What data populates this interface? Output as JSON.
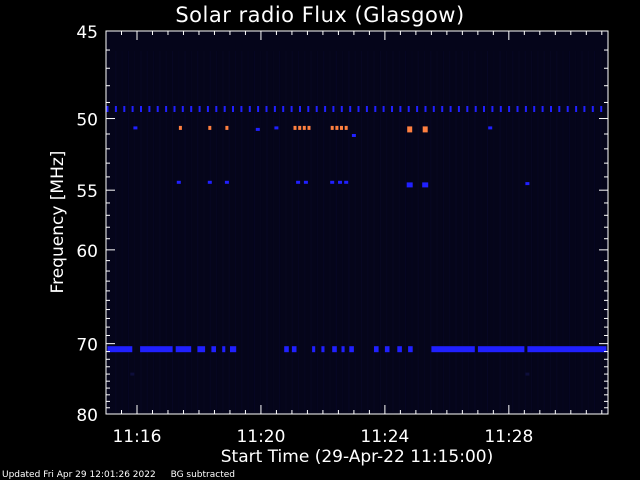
{
  "chart_data": {
    "type": "heatmap",
    "title": "Solar radio Flux (Glasgow)",
    "xlabel": "Start Time (29-Apr-22 11:15:00)",
    "ylabel": "Frequency [MHz]",
    "x_unit": "minutes after 11:15:00",
    "xlim": [
      0,
      16.2
    ],
    "ylim": [
      45,
      80
    ],
    "y_scale": "reciprocal",
    "x_ticks": [
      {
        "value": 1,
        "label": "11:16"
      },
      {
        "value": 5,
        "label": "11:20"
      },
      {
        "value": 9,
        "label": "11:24"
      },
      {
        "value": 13,
        "label": "11:28"
      }
    ],
    "y_ticks": [
      {
        "value": 45,
        "label": "45"
      },
      {
        "value": 50,
        "label": "50"
      },
      {
        "value": 55,
        "label": "55"
      },
      {
        "value": 60,
        "label": "60"
      },
      {
        "value": 70,
        "label": "70"
      },
      {
        "value": 80,
        "label": "80"
      }
    ],
    "colors": {
      "background": "#05051a",
      "low": "#0e0e3a",
      "mid": "#2020ff",
      "high": "#ff8040"
    },
    "bands": [
      {
        "freq": 49.4,
        "kind": "dotted",
        "level": "mid",
        "x_start": 0.05,
        "x_end": 16.15,
        "step": 0.27
      },
      {
        "freq": 70.7,
        "level": "mid",
        "segments": [
          [
            0.05,
            0.85
          ],
          [
            1.1,
            2.15
          ],
          [
            2.25,
            2.75
          ],
          [
            2.95,
            3.2
          ],
          [
            3.4,
            3.55
          ],
          [
            3.75,
            3.85
          ],
          [
            4.0,
            4.2
          ],
          [
            5.75,
            5.9
          ],
          [
            6.0,
            6.15
          ],
          [
            6.65,
            6.75
          ],
          [
            6.95,
            7.05
          ],
          [
            7.3,
            7.45
          ],
          [
            7.6,
            7.7
          ],
          [
            7.85,
            8.0
          ],
          [
            8.65,
            8.8
          ],
          [
            9.0,
            9.15
          ],
          [
            9.4,
            9.55
          ],
          [
            9.75,
            9.9
          ],
          [
            10.5,
            11.9
          ],
          [
            12.0,
            13.5
          ],
          [
            13.6,
            16.15
          ]
        ]
      }
    ],
    "bursts": [
      {
        "x": 0.95,
        "freq": 50.6,
        "level": "mid"
      },
      {
        "x": 2.4,
        "freq": 50.6,
        "level": "high"
      },
      {
        "x": 3.35,
        "freq": 50.6,
        "level": "high"
      },
      {
        "x": 3.9,
        "freq": 50.6,
        "level": "high"
      },
      {
        "x": 4.9,
        "freq": 50.7,
        "level": "mid"
      },
      {
        "x": 5.5,
        "freq": 50.6,
        "level": "mid"
      },
      {
        "x": 6.1,
        "freq": 50.6,
        "level": "high"
      },
      {
        "x": 6.25,
        "freq": 50.6,
        "level": "high"
      },
      {
        "x": 6.4,
        "freq": 50.6,
        "level": "high"
      },
      {
        "x": 6.55,
        "freq": 50.6,
        "level": "high"
      },
      {
        "x": 7.3,
        "freq": 50.6,
        "level": "high"
      },
      {
        "x": 7.45,
        "freq": 50.6,
        "level": "high"
      },
      {
        "x": 7.6,
        "freq": 50.6,
        "level": "high"
      },
      {
        "x": 7.75,
        "freq": 50.6,
        "level": "high"
      },
      {
        "x": 8.0,
        "freq": 51.1,
        "level": "mid"
      },
      {
        "x": 9.8,
        "freq": 50.7,
        "level": "high"
      },
      {
        "x": 10.3,
        "freq": 50.7,
        "level": "high"
      },
      {
        "x": 12.4,
        "freq": 50.6,
        "level": "mid"
      },
      {
        "x": 2.35,
        "freq": 54.4,
        "level": "mid"
      },
      {
        "x": 3.35,
        "freq": 54.4,
        "level": "mid"
      },
      {
        "x": 3.9,
        "freq": 54.4,
        "level": "mid"
      },
      {
        "x": 6.2,
        "freq": 54.4,
        "level": "mid"
      },
      {
        "x": 6.45,
        "freq": 54.4,
        "level": "mid"
      },
      {
        "x": 7.3,
        "freq": 54.4,
        "level": "mid"
      },
      {
        "x": 7.55,
        "freq": 54.4,
        "level": "mid"
      },
      {
        "x": 7.75,
        "freq": 54.4,
        "level": "mid"
      },
      {
        "x": 9.8,
        "freq": 54.6,
        "level": "mid"
      },
      {
        "x": 10.3,
        "freq": 54.6,
        "level": "mid"
      },
      {
        "x": 13.6,
        "freq": 54.5,
        "level": "mid"
      },
      {
        "x": 0.85,
        "freq": 74.0,
        "level": "low"
      },
      {
        "x": 13.6,
        "freq": 74.0,
        "level": "low"
      }
    ]
  },
  "footer": {
    "updated": "Updated Fri Apr 29 12:01:26 2022",
    "note": "BG subtracted"
  }
}
